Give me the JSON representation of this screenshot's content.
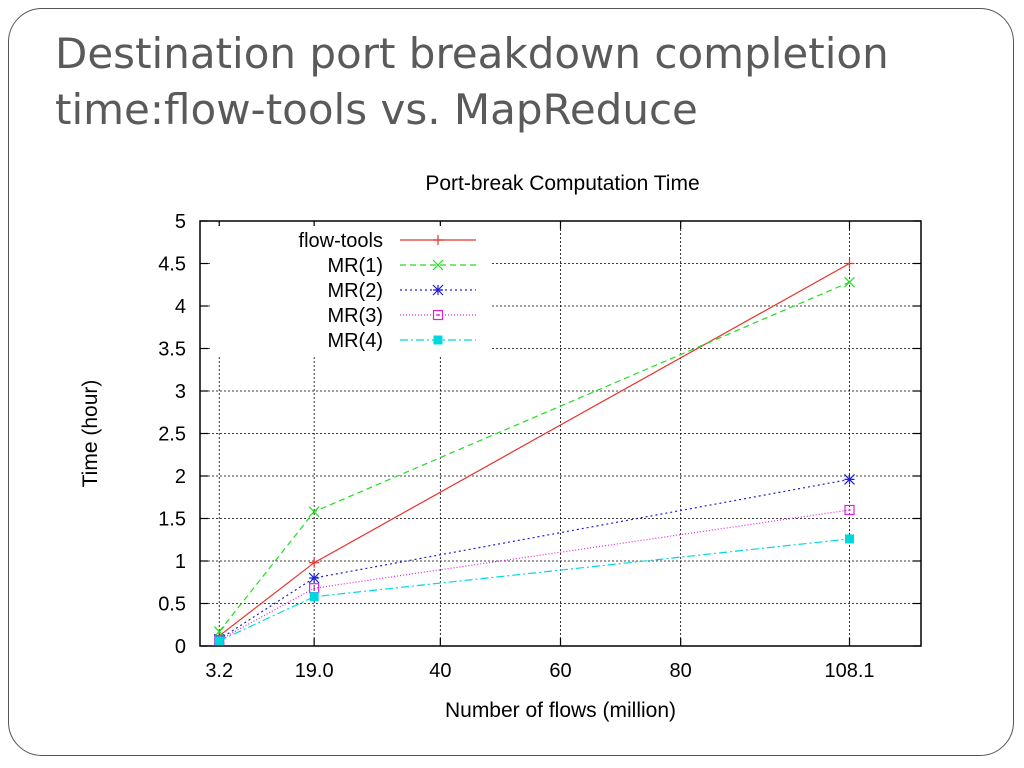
{
  "slide": {
    "title_line1": "Destination port breakdown completion",
    "title_line2": "time:flow-tools vs. MapReduce"
  },
  "chart_data": {
    "type": "line",
    "title": "Port-break Computation Time",
    "xlabel": "Number of flows (million)",
    "ylabel": "Time (hour)",
    "xlim": [
      0,
      120
    ],
    "ylim": [
      0,
      5
    ],
    "xticks": [
      {
        "value": 3.2,
        "label": "3.2"
      },
      {
        "value": 19.0,
        "label": "19.0"
      },
      {
        "value": 40,
        "label": "40"
      },
      {
        "value": 60,
        "label": "60"
      },
      {
        "value": 80,
        "label": "80"
      },
      {
        "value": 108.1,
        "label": "108.1"
      }
    ],
    "yticks": [
      "0",
      "0.5",
      "1",
      "1.5",
      "2",
      "2.5",
      "3",
      "3.5",
      "4",
      "4.5",
      "5"
    ],
    "grid": true,
    "legend_position": "top-left",
    "x": [
      3.2,
      19.0,
      108.1
    ],
    "series": [
      {
        "name": "flow-tools",
        "values": [
          0.12,
          0.98,
          4.5
        ],
        "color": "#e8312a",
        "dash": "",
        "marker": "plus"
      },
      {
        "name": "MR(1)",
        "values": [
          0.17,
          1.58,
          4.28
        ],
        "color": "#22dd22",
        "dash": "6,4",
        "marker": "cross"
      },
      {
        "name": "MR(2)",
        "values": [
          0.08,
          0.8,
          1.96
        ],
        "color": "#2020d0",
        "dash": "2,3",
        "marker": "star"
      },
      {
        "name": "MR(3)",
        "values": [
          0.07,
          0.68,
          1.6
        ],
        "color": "#e020e0",
        "dash": "1,2",
        "marker": "square-open"
      },
      {
        "name": "MR(4)",
        "values": [
          0.06,
          0.58,
          1.26
        ],
        "color": "#00d8e0",
        "dash": "8,3,2,3",
        "marker": "square-filled"
      }
    ]
  }
}
